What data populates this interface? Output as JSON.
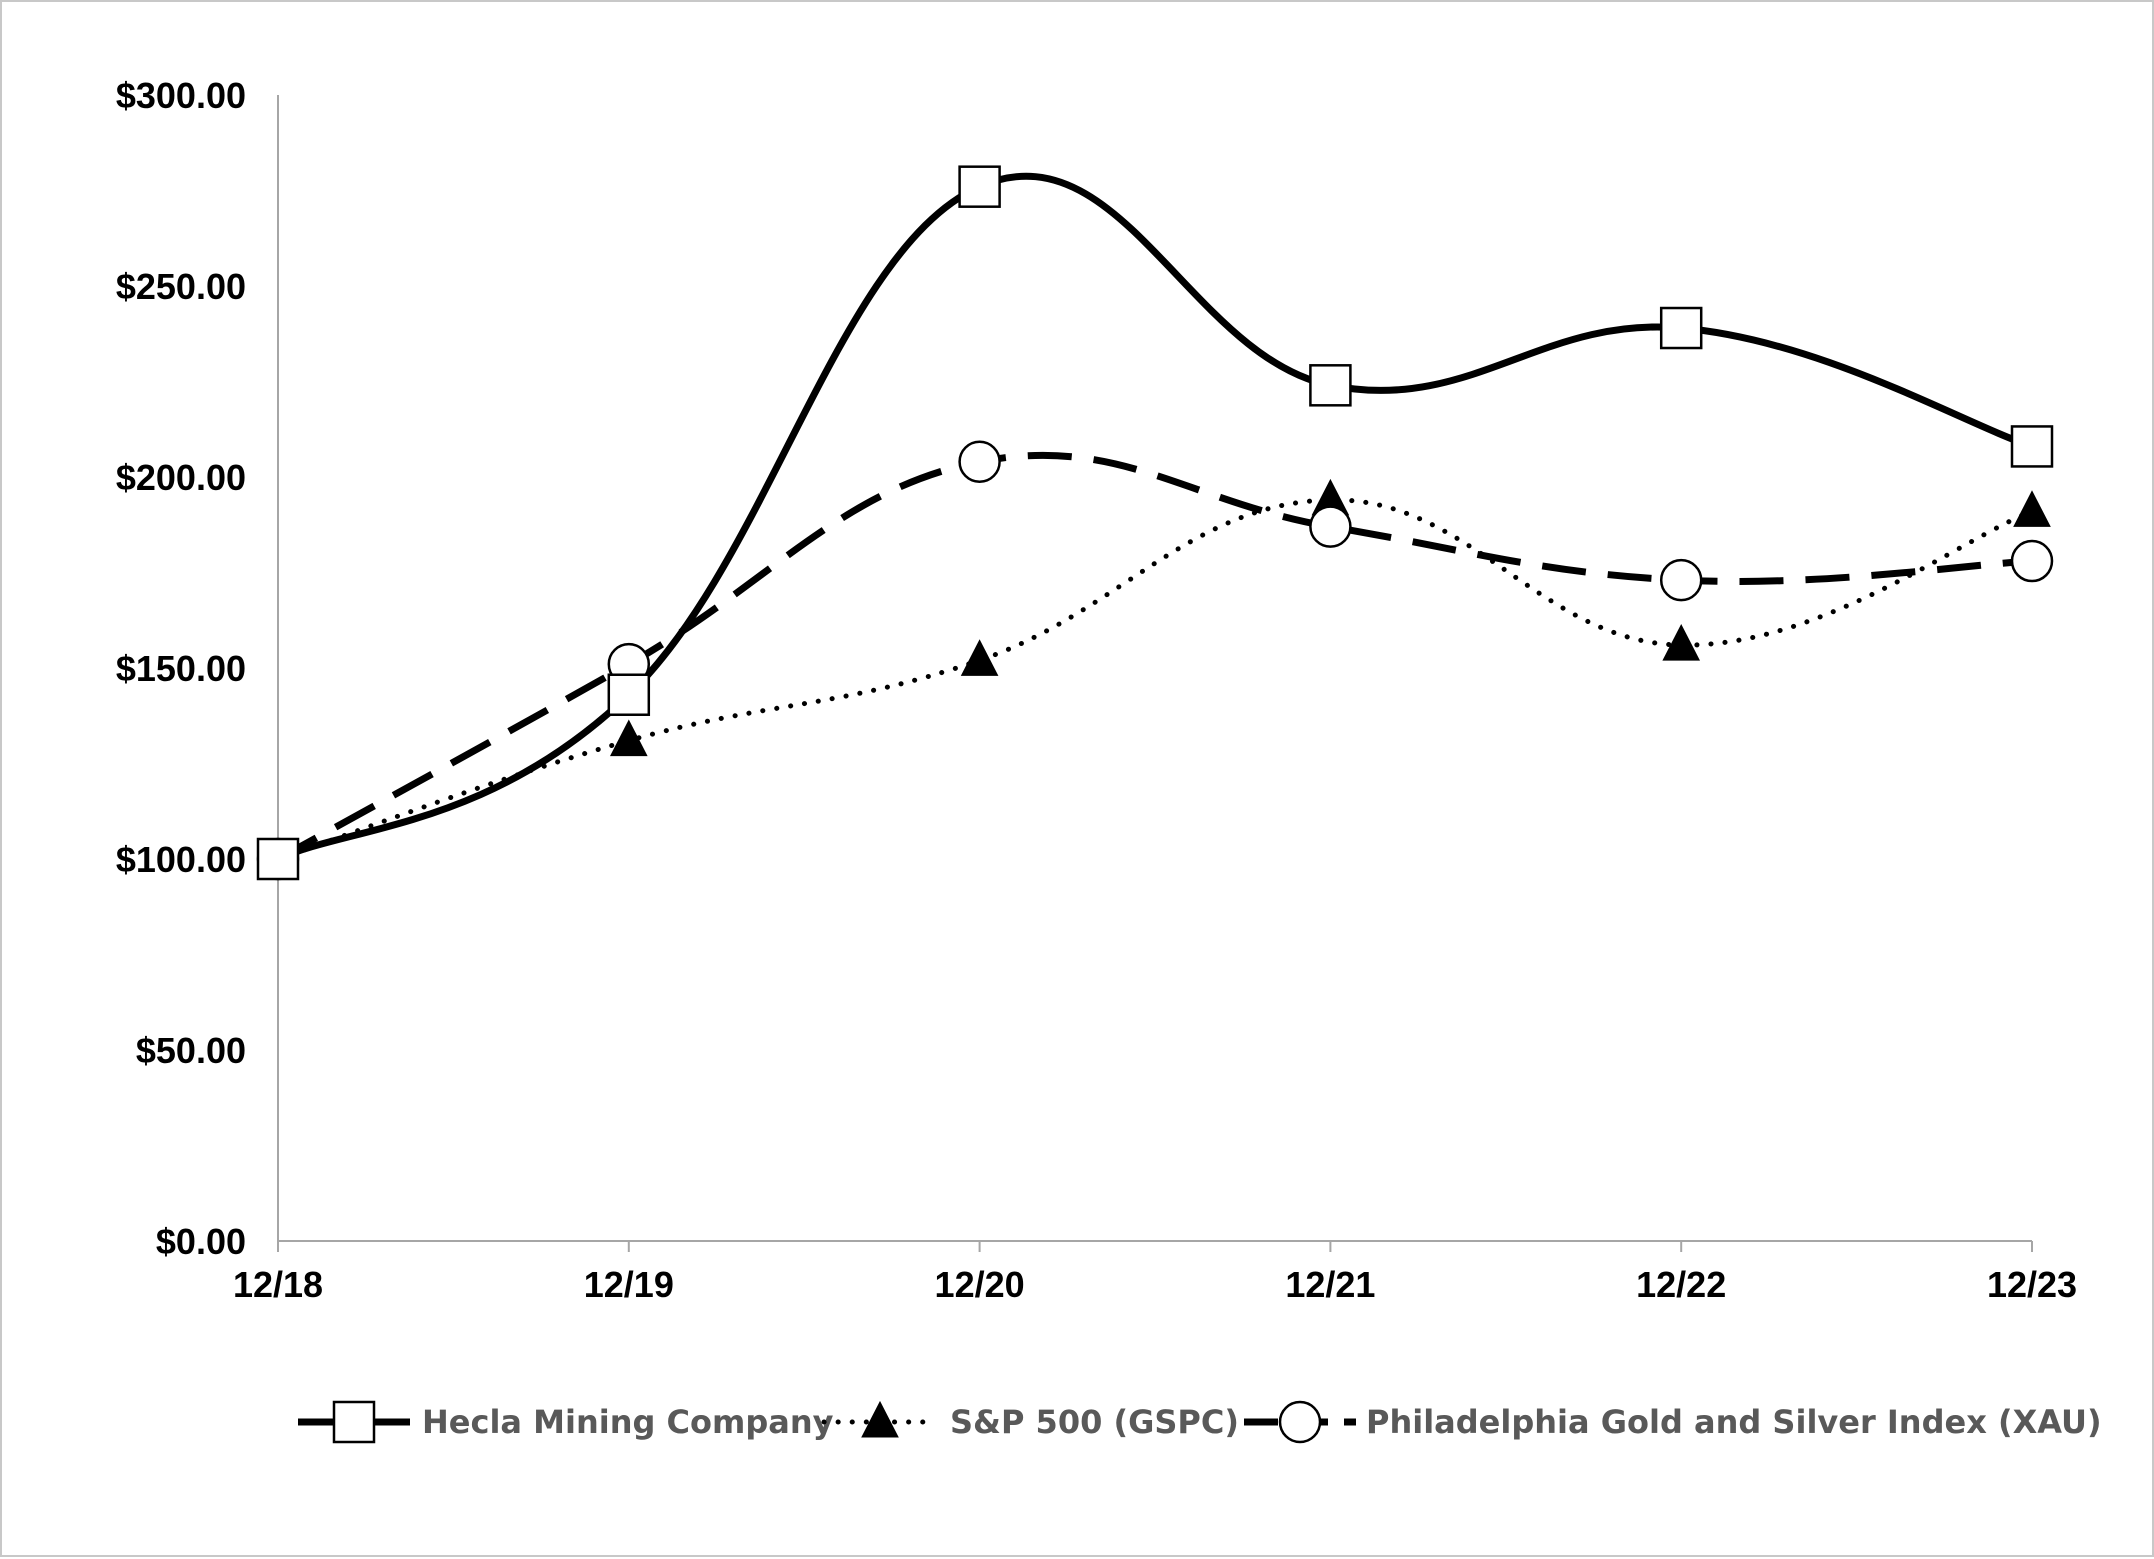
{
  "chart_data": {
    "type": "line",
    "categories": [
      "12/18",
      "12/19",
      "12/20",
      "12/21",
      "12/22",
      "12/23"
    ],
    "y_ticks": [
      "$0.00",
      "$50.00",
      "$100.00",
      "$150.00",
      "$200.00",
      "$250.00",
      "$300.00"
    ],
    "ylim": [
      0,
      300
    ],
    "grid": false,
    "legend_position": "bottom",
    "series": [
      {
        "name": "Hecla Mining Company",
        "values": [
          100,
          143,
          276,
          224,
          239,
          208
        ],
        "color": "#000000",
        "line_style": "solid",
        "marker": "square-open"
      },
      {
        "name": "S&P 500 (GSPC)",
        "values": [
          100,
          131,
          152,
          194,
          156,
          191
        ],
        "color": "#000000",
        "line_style": "dotted",
        "marker": "triangle-filled"
      },
      {
        "name": "Philadelphia Gold and Silver Index (XAU)",
        "values": [
          100,
          151,
          204,
          187,
          173,
          178
        ],
        "color": "#000000",
        "line_style": "dashed",
        "marker": "circle-open"
      }
    ]
  }
}
